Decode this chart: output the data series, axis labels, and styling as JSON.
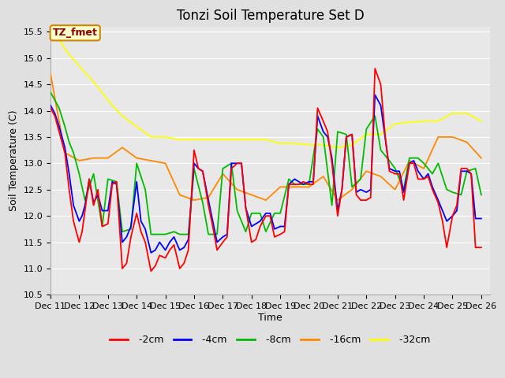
{
  "title": "Tonzi Soil Temperature Set D",
  "xlabel": "Time",
  "ylabel": "Soil Temperature (C)",
  "ylim": [
    10.5,
    15.6
  ],
  "xtick_labels": [
    "Dec 11",
    "Dec 12",
    "Dec 13",
    "Dec 14",
    "Dec 15",
    "Dec 16",
    "Dec 17",
    "Dec 18",
    "Dec 19",
    "Dec 20",
    "Dec 21",
    "Dec 22",
    "Dec 23",
    "Dec 24",
    "Dec 25",
    "Dec 26"
  ],
  "xtick_positions": [
    0,
    1,
    2,
    3,
    4,
    5,
    6,
    7,
    8,
    9,
    10,
    11,
    12,
    13,
    14,
    15
  ],
  "series_colors": {
    "-2cm": "#ff0000",
    "-4cm": "#0000ff",
    "-8cm": "#00bb00",
    "-16cm": "#ff8800",
    "-32cm": "#ffff00"
  },
  "fig_bg": "#e0e0e0",
  "plot_bg": "#e8e8e8",
  "grid_color": "#ffffff",
  "annotation_text": "TZ_fmet",
  "annotation_bg": "#ffffcc",
  "annotation_border": "#cc8800",
  "annotation_text_color": "#8b0000",
  "title_fontsize": 12,
  "axis_label_fontsize": 9,
  "tick_fontsize": 8,
  "legend_fontsize": 9,
  "x_2cm": [
    0,
    0.15,
    0.3,
    0.5,
    0.65,
    0.8,
    1.0,
    1.1,
    1.2,
    1.35,
    1.5,
    1.65,
    1.8,
    2.0,
    2.15,
    2.3,
    2.5,
    2.65,
    2.8,
    3.0,
    3.15,
    3.3,
    3.5,
    3.65,
    3.8,
    4.0,
    4.15,
    4.3,
    4.5,
    4.65,
    4.8,
    5.0,
    5.15,
    5.3,
    5.5,
    5.65,
    5.8,
    6.0,
    6.15,
    6.3,
    6.5,
    6.65,
    6.8,
    7.0,
    7.15,
    7.3,
    7.5,
    7.65,
    7.8,
    8.0,
    8.15,
    8.3,
    8.5,
    8.65,
    8.8,
    9.0,
    9.15,
    9.3,
    9.5,
    9.65,
    9.8,
    10.0,
    10.15,
    10.3,
    10.5,
    10.65,
    10.8,
    11.0,
    11.15,
    11.3,
    11.5,
    11.65,
    11.8,
    12.0,
    12.15,
    12.3,
    12.5,
    12.65,
    12.8,
    13.0,
    13.15,
    13.3,
    13.5,
    13.65,
    13.8,
    14.0,
    14.15,
    14.3,
    14.5,
    14.65,
    14.8,
    15.0
  ],
  "y_2cm": [
    14.05,
    13.9,
    13.6,
    13.2,
    12.5,
    11.9,
    11.5,
    11.7,
    12.1,
    12.7,
    12.2,
    12.5,
    11.8,
    11.85,
    12.6,
    12.65,
    11.0,
    11.1,
    11.6,
    12.05,
    11.7,
    11.5,
    10.95,
    11.05,
    11.25,
    11.2,
    11.35,
    11.45,
    11.0,
    11.1,
    11.35,
    13.25,
    12.9,
    12.85,
    12.2,
    11.8,
    11.35,
    11.5,
    11.6,
    12.9,
    13.0,
    13.0,
    12.15,
    11.5,
    11.55,
    11.8,
    12.0,
    12.0,
    11.6,
    11.65,
    11.7,
    12.6,
    12.6,
    12.6,
    12.65,
    12.6,
    12.6,
    14.05,
    13.8,
    13.6,
    13.0,
    12.0,
    12.5,
    13.5,
    13.55,
    12.4,
    12.3,
    12.3,
    12.35,
    14.8,
    14.5,
    13.55,
    12.85,
    12.8,
    12.8,
    12.3,
    13.0,
    13.0,
    12.7,
    12.7,
    12.75,
    12.5,
    12.25,
    11.9,
    11.4,
    12.0,
    12.2,
    12.9,
    12.9,
    12.8,
    11.4,
    11.4
  ],
  "x_4cm": [
    0,
    0.15,
    0.3,
    0.5,
    0.65,
    0.8,
    1.0,
    1.1,
    1.2,
    1.35,
    1.5,
    1.65,
    1.8,
    2.0,
    2.15,
    2.3,
    2.5,
    2.65,
    2.8,
    3.0,
    3.15,
    3.3,
    3.5,
    3.65,
    3.8,
    4.0,
    4.15,
    4.3,
    4.5,
    4.65,
    4.8,
    5.0,
    5.15,
    5.3,
    5.5,
    5.65,
    5.8,
    6.0,
    6.15,
    6.3,
    6.5,
    6.65,
    6.8,
    7.0,
    7.15,
    7.3,
    7.5,
    7.65,
    7.8,
    8.0,
    8.15,
    8.3,
    8.5,
    8.65,
    8.8,
    9.0,
    9.15,
    9.3,
    9.5,
    9.65,
    9.8,
    10.0,
    10.15,
    10.3,
    10.5,
    10.65,
    10.8,
    11.0,
    11.15,
    11.3,
    11.5,
    11.65,
    11.8,
    12.0,
    12.15,
    12.3,
    12.5,
    12.65,
    12.8,
    13.0,
    13.15,
    13.3,
    13.5,
    13.65,
    13.8,
    14.0,
    14.15,
    14.3,
    14.5,
    14.65,
    14.8,
    15.0
  ],
  "y_4cm": [
    14.1,
    13.95,
    13.7,
    13.3,
    12.8,
    12.2,
    11.9,
    12.0,
    12.2,
    12.7,
    12.25,
    12.4,
    12.1,
    12.1,
    12.65,
    12.6,
    11.5,
    11.6,
    11.8,
    12.65,
    11.9,
    11.75,
    11.3,
    11.35,
    11.5,
    11.35,
    11.5,
    11.6,
    11.35,
    11.4,
    11.55,
    13.0,
    12.9,
    12.85,
    12.3,
    11.9,
    11.5,
    11.6,
    11.65,
    13.0,
    13.0,
    13.0,
    12.15,
    11.8,
    11.85,
    11.9,
    12.05,
    12.05,
    11.75,
    11.8,
    11.8,
    12.6,
    12.7,
    12.65,
    12.6,
    12.65,
    12.65,
    13.9,
    13.6,
    13.5,
    13.1,
    12.1,
    12.5,
    13.5,
    13.55,
    12.45,
    12.5,
    12.45,
    12.5,
    14.3,
    14.1,
    13.5,
    12.9,
    12.85,
    12.85,
    12.45,
    13.0,
    13.05,
    12.85,
    12.7,
    12.8,
    12.55,
    12.3,
    12.1,
    11.9,
    12.0,
    12.1,
    12.85,
    12.85,
    12.8,
    11.95,
    11.95
  ],
  "x_8cm": [
    0,
    0.15,
    0.3,
    0.5,
    0.65,
    0.8,
    1.0,
    1.2,
    1.5,
    1.8,
    2.0,
    2.3,
    2.5,
    2.8,
    3.0,
    3.3,
    3.5,
    3.8,
    4.0,
    4.3,
    4.5,
    4.8,
    5.0,
    5.3,
    5.5,
    5.8,
    6.0,
    6.3,
    6.5,
    6.8,
    7.0,
    7.3,
    7.5,
    7.8,
    8.0,
    8.3,
    8.5,
    8.8,
    9.0,
    9.3,
    9.5,
    9.8,
    10.0,
    10.3,
    10.5,
    10.8,
    11.0,
    11.3,
    11.5,
    11.8,
    12.0,
    12.3,
    12.5,
    12.8,
    13.0,
    13.3,
    13.5,
    13.8,
    14.0,
    14.3,
    14.5,
    14.8,
    15.0
  ],
  "y_8cm": [
    14.35,
    14.2,
    14.05,
    13.7,
    13.4,
    13.2,
    12.8,
    12.3,
    12.8,
    11.8,
    12.7,
    12.65,
    11.7,
    11.75,
    13.0,
    12.5,
    11.65,
    11.65,
    11.65,
    11.7,
    11.65,
    11.65,
    12.9,
    12.25,
    11.65,
    11.65,
    12.9,
    13.0,
    12.1,
    11.7,
    12.05,
    12.05,
    11.7,
    12.05,
    12.05,
    12.7,
    12.6,
    12.6,
    12.6,
    13.65,
    13.5,
    12.2,
    13.6,
    13.55,
    12.55,
    12.7,
    13.65,
    13.9,
    13.25,
    13.05,
    12.9,
    12.5,
    13.1,
    13.1,
    13.0,
    12.8,
    13.0,
    12.5,
    12.45,
    12.4,
    12.85,
    12.9,
    12.4
  ],
  "x_16cm": [
    0,
    0.2,
    0.5,
    1.0,
    1.5,
    2.0,
    2.5,
    3.0,
    3.5,
    4.0,
    4.5,
    5.0,
    5.5,
    6.0,
    6.5,
    7.0,
    7.5,
    8.0,
    8.5,
    9.0,
    9.5,
    10.0,
    10.5,
    11.0,
    11.5,
    12.0,
    12.5,
    13.0,
    13.5,
    14.0,
    14.5,
    15.0
  ],
  "y_16cm": [
    14.7,
    14.1,
    13.2,
    13.05,
    13.1,
    13.1,
    13.3,
    13.1,
    13.05,
    13.0,
    12.4,
    12.3,
    12.35,
    12.8,
    12.5,
    12.4,
    12.3,
    12.55,
    12.55,
    12.55,
    12.75,
    12.3,
    12.5,
    12.85,
    12.75,
    12.5,
    13.05,
    12.9,
    13.5,
    13.5,
    13.4,
    13.1
  ],
  "x_32cm": [
    0,
    0.3,
    0.6,
    1.0,
    1.5,
    2.0,
    2.5,
    3.0,
    3.5,
    4.0,
    4.5,
    5.0,
    5.5,
    6.0,
    6.5,
    7.0,
    7.5,
    8.0,
    8.5,
    9.0,
    9.5,
    10.0,
    10.5,
    11.0,
    11.5,
    12.0,
    12.5,
    13.0,
    13.5,
    14.0,
    14.5,
    15.0
  ],
  "y_32cm": [
    15.55,
    15.35,
    15.1,
    14.85,
    14.55,
    14.2,
    13.9,
    13.7,
    13.5,
    13.5,
    13.45,
    13.45,
    13.45,
    13.45,
    13.45,
    13.45,
    13.45,
    13.38,
    13.38,
    13.35,
    13.35,
    13.3,
    13.35,
    13.55,
    13.55,
    13.75,
    13.78,
    13.8,
    13.8,
    13.95,
    13.95,
    13.8
  ]
}
